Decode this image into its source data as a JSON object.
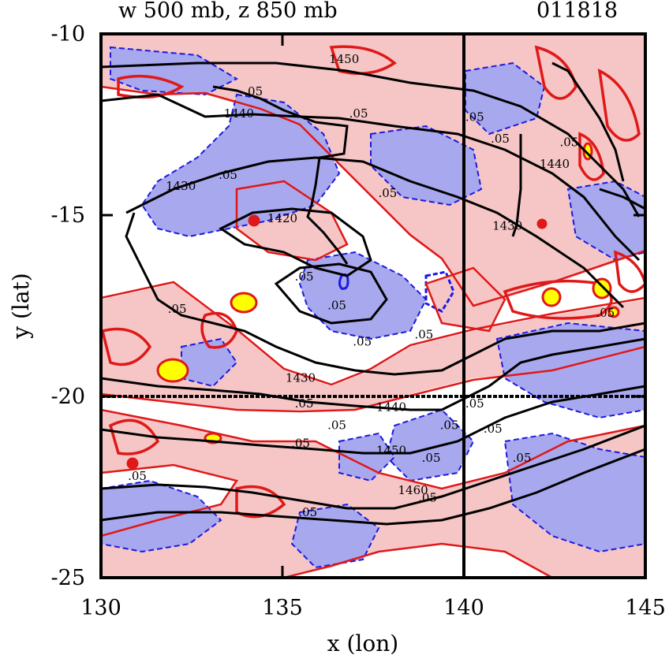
{
  "chart_data": {
    "type": "heatmap",
    "title": "w 500 mb, z 850 mb",
    "date_label": "011818",
    "xlabel": "x (lon)",
    "ylabel": "y (lat)",
    "xlim": [
      130,
      145
    ],
    "ylim": [
      -25,
      -10
    ],
    "x_ticks": [
      130,
      135,
      140,
      145
    ],
    "y_ticks": [
      -10,
      -15,
      -20,
      -25
    ],
    "grid": false,
    "reference_lines": {
      "lon": 140,
      "lat": -20
    },
    "colors": {
      "updraft_fill": "#f6c6c6",
      "updraft_contour": "#e01818",
      "strong_updraft_fill": "#ffff00",
      "downdraft_fill": "#a8a8ee",
      "downdraft_contour": "#1a1ae0",
      "height_contour": "#000000"
    },
    "series": [
      {
        "name": "w 500 mb",
        "contour_levels": [
          -0.05,
          0.05
        ]
      },
      {
        "name": "z 850 mb",
        "contour_levels": [
          1420,
          1430,
          1440,
          1450,
          1460
        ]
      }
    ],
    "contour_labels": [
      {
        "text": "1450",
        "lon": 136.7,
        "lat": -10.8
      },
      {
        "text": "1440",
        "lon": 133.8,
        "lat": -12.3
      },
      {
        "text": "1430",
        "lon": 132.2,
        "lat": -14.3
      },
      {
        "text": "1420",
        "lon": 135.0,
        "lat": -15.2
      },
      {
        "text": "1430",
        "lon": 141.2,
        "lat": -15.4
      },
      {
        "text": "1440",
        "lon": 142.5,
        "lat": -13.7
      },
      {
        "text": "1430",
        "lon": 135.5,
        "lat": -19.6
      },
      {
        "text": "1440",
        "lon": 138.0,
        "lat": -20.4
      },
      {
        "text": "1450",
        "lon": 138.0,
        "lat": -21.6
      },
      {
        "text": "1460",
        "lon": 138.6,
        "lat": -22.7
      },
      {
        "text": ".05",
        "lon": 134.2,
        "lat": -11.7
      },
      {
        "text": ".05",
        "lon": 137.1,
        "lat": -12.3
      },
      {
        "text": ".05",
        "lon": 140.3,
        "lat": -12.4
      },
      {
        "text": ".05",
        "lon": 141.0,
        "lat": -13.0
      },
      {
        "text": ".05",
        "lon": 142.9,
        "lat": -13.1
      },
      {
        "text": ".05",
        "lon": 133.5,
        "lat": -14.0
      },
      {
        "text": ".05",
        "lon": 137.9,
        "lat": -14.5
      },
      {
        "text": ".05",
        "lon": 135.6,
        "lat": -16.8
      },
      {
        "text": ".05",
        "lon": 136.5,
        "lat": -17.6
      },
      {
        "text": ".05",
        "lon": 137.2,
        "lat": -18.6
      },
      {
        "text": ".05",
        "lon": 138.9,
        "lat": -18.4
      },
      {
        "text": ".05",
        "lon": 139.6,
        "lat": -20.9
      },
      {
        "text": ".05",
        "lon": 140.3,
        "lat": -20.3
      },
      {
        "text": ".05",
        "lon": 140.8,
        "lat": -21.0
      },
      {
        "text": ".05",
        "lon": 135.6,
        "lat": -20.3
      },
      {
        "text": ".05",
        "lon": 136.5,
        "lat": -20.9
      },
      {
        "text": ".05",
        "lon": 135.5,
        "lat": -21.4
      },
      {
        "text": ".05",
        "lon": 139.1,
        "lat": -21.8
      },
      {
        "text": ".05",
        "lon": 139.0,
        "lat": -22.9
      },
      {
        "text": ".05",
        "lon": 141.6,
        "lat": -21.8
      },
      {
        "text": ".05",
        "lon": 143.9,
        "lat": -17.8
      },
      {
        "text": ".05",
        "lon": 135.7,
        "lat": -23.3
      },
      {
        "text": ".05",
        "lon": 131.0,
        "lat": -22.3
      },
      {
        "text": ".05",
        "lon": 132.1,
        "lat": -17.7
      }
    ]
  }
}
